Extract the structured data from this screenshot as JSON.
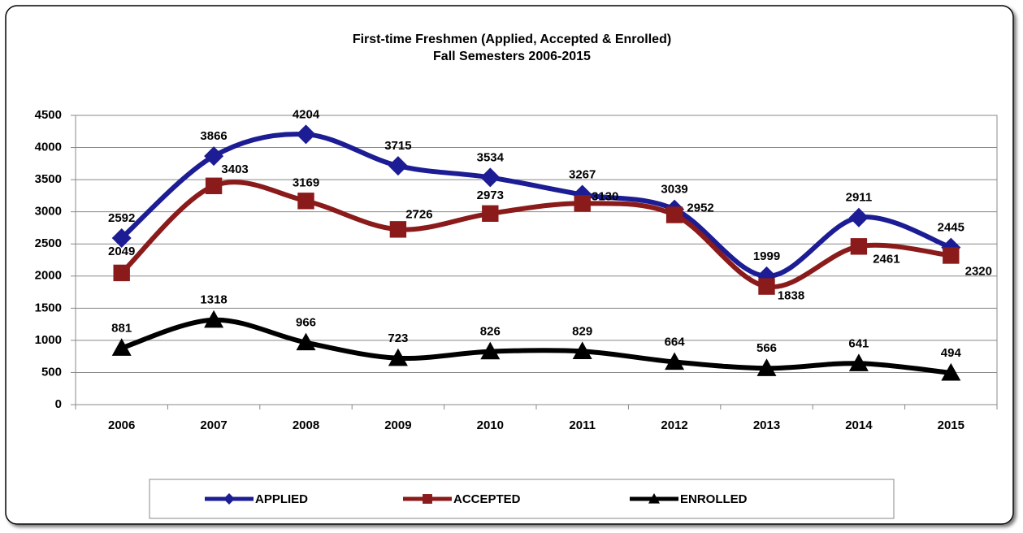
{
  "chart_data": {
    "type": "line",
    "title": "First-time Freshmen (Applied, Accepted & Enrolled)",
    "subtitle": "Fall Semesters 2006-2015",
    "categories": [
      "2006",
      "2007",
      "2008",
      "2009",
      "2010",
      "2011",
      "2012",
      "2013",
      "2014",
      "2015"
    ],
    "series": [
      {
        "name": "APPLIED",
        "color": "#1c1c94",
        "marker": "diamond",
        "values": [
          2592,
          3866,
          4204,
          3715,
          3534,
          3267,
          3039,
          1999,
          2911,
          2445
        ]
      },
      {
        "name": "ACCEPTED",
        "color": "#8b1a1a",
        "marker": "square",
        "values": [
          2049,
          3403,
          3169,
          2726,
          2973,
          3130,
          2952,
          1838,
          2461,
          2320
        ]
      },
      {
        "name": "ENROLLED",
        "color": "#000000",
        "marker": "triangle",
        "values": [
          881,
          1318,
          966,
          723,
          826,
          829,
          664,
          566,
          641,
          494
        ]
      }
    ],
    "ylim": [
      0,
      4500
    ],
    "yticks": [
      0,
      500,
      1000,
      1500,
      2000,
      2500,
      3000,
      3500,
      4000,
      4500
    ],
    "grid": true,
    "legend": "bottom",
    "smooth": true
  }
}
